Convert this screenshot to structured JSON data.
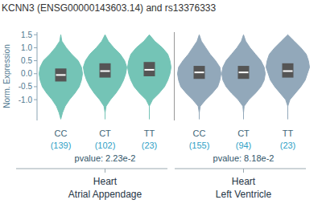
{
  "chart_data": {
    "type": "violin",
    "title": "KCNN3 (ENSG00000143603.14) and rs13376333",
    "y_label": "Norm. Expression",
    "ylim": [
      -1.8,
      1.6
    ],
    "yticks": [
      {
        "value": -1,
        "label": "-1.0"
      },
      -0.5,
      {
        "value": 0,
        "label": "0.0"
      },
      0.5,
      {
        "value": 1,
        "label": "1.0"
      },
      1.5
    ],
    "density_y": [
      -1.75,
      -1.5,
      -1.25,
      -1.0,
      -0.75,
      -0.5,
      -0.25,
      0,
      0.25,
      0.5,
      0.75,
      1.0,
      1.25,
      1.5
    ],
    "series": [
      {
        "name": [
          "Heart",
          "Atrial Appendage"
        ],
        "color": "#74c4b6",
        "pvalue": "pvalue: 2.23e-2",
        "groups": [
          {
            "genotype": "CC",
            "n": "(139)",
            "median": -0.05,
            "q1": -0.3,
            "q3": 0.2,
            "density": [
              0,
              0.08,
              0.2,
              0.4,
              0.65,
              0.85,
              0.95,
              1.0,
              0.95,
              0.8,
              0.5,
              0.25,
              0.05,
              0
            ]
          },
          {
            "genotype": "CT",
            "n": "(102)",
            "median": 0.1,
            "q1": -0.15,
            "q3": 0.4,
            "density": [
              0,
              0,
              0.05,
              0.25,
              0.5,
              0.7,
              0.85,
              0.95,
              1.0,
              0.9,
              0.7,
              0.4,
              0.15,
              0
            ]
          },
          {
            "genotype": "TT",
            "n": "(23)",
            "median": 0.15,
            "q1": -0.1,
            "q3": 0.45,
            "density": [
              0,
              0,
              0,
              0.15,
              0.45,
              0.7,
              0.85,
              0.95,
              1.0,
              0.95,
              0.85,
              0.6,
              0.25,
              0
            ]
          }
        ]
      },
      {
        "name": [
          "Heart",
          "Left Ventricle"
        ],
        "color": "#92a8ba",
        "pvalue": "pvalue: 8.18e-2",
        "groups": [
          {
            "genotype": "CC",
            "n": "(155)",
            "median": 0.05,
            "q1": -0.2,
            "q3": 0.3,
            "density": [
              0,
              0,
              0.05,
              0.3,
              0.6,
              0.85,
              0.95,
              1.0,
              0.95,
              0.75,
              0.5,
              0.3,
              0.1,
              0
            ]
          },
          {
            "genotype": "CT",
            "n": "(94)",
            "median": 0.05,
            "q1": -0.2,
            "q3": 0.3,
            "density": [
              0,
              0,
              0.03,
              0.25,
              0.55,
              0.8,
              0.95,
              1.0,
              0.95,
              0.8,
              0.55,
              0.3,
              0.1,
              0
            ]
          },
          {
            "genotype": "TT",
            "n": "(23)",
            "median": 0.1,
            "q1": -0.15,
            "q3": 0.4,
            "density": [
              0,
              0,
              0,
              0.1,
              0.35,
              0.6,
              0.8,
              0.9,
              1.0,
              0.95,
              0.85,
              0.6,
              0.3,
              0
            ]
          }
        ]
      }
    ]
  }
}
